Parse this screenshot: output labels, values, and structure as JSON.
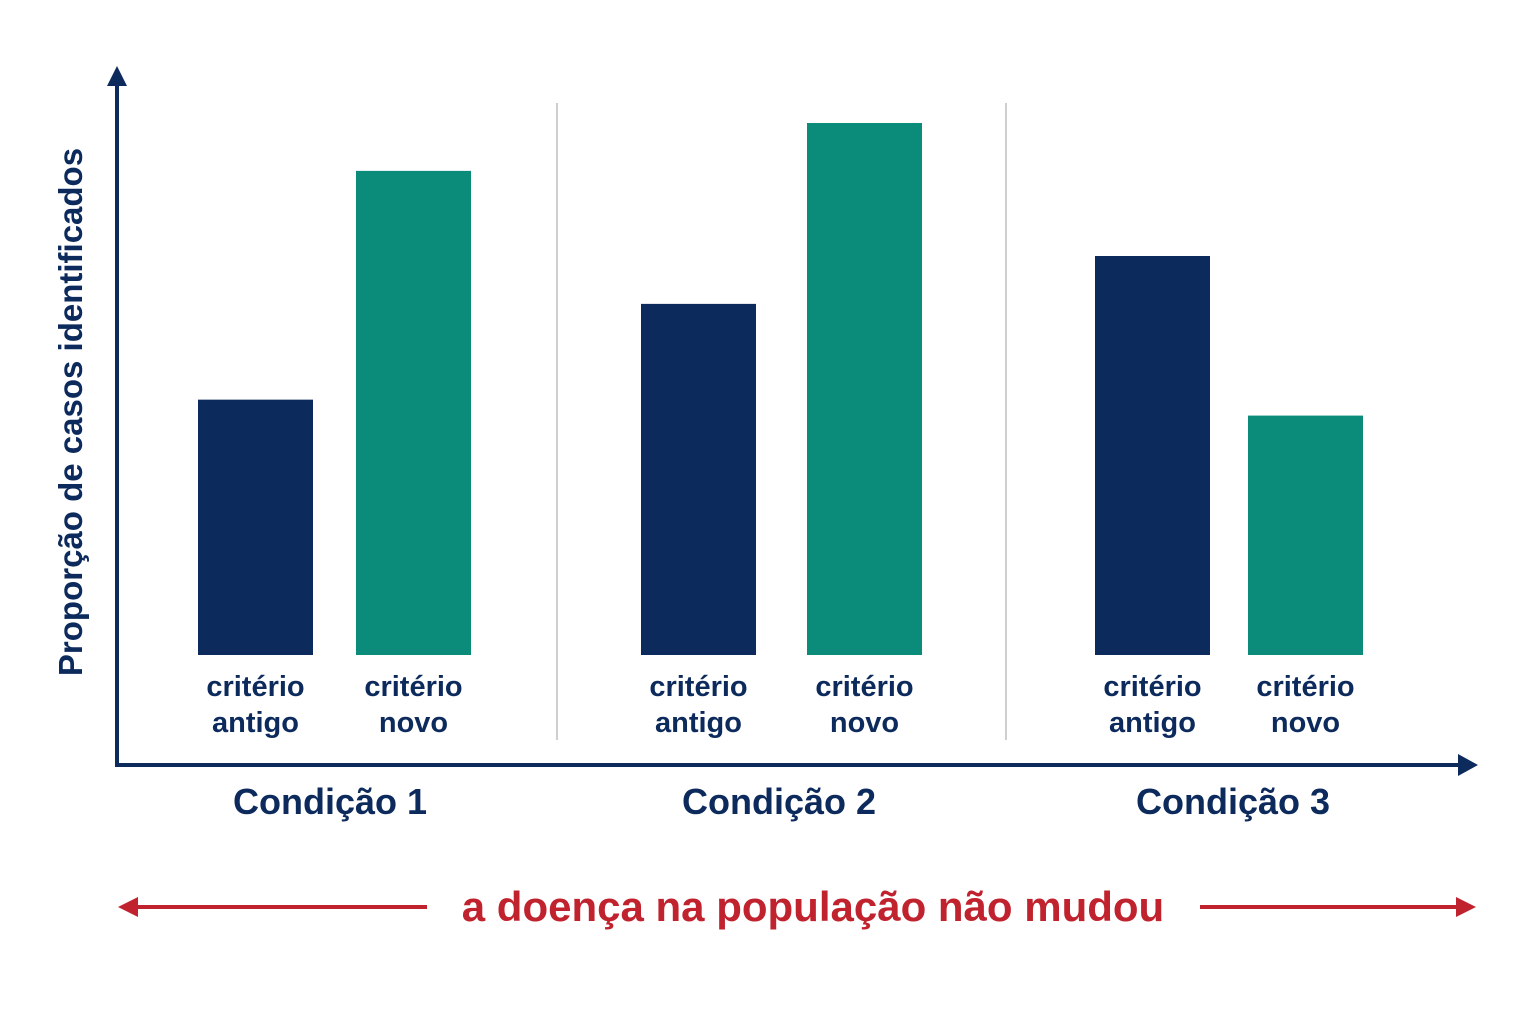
{
  "chart_data": {
    "type": "bar",
    "title": "",
    "ylabel": "Proporção de casos identificados",
    "xlabel": "",
    "ylim": [
      0,
      100
    ],
    "grid": false,
    "groups": [
      {
        "name": "Condição 1",
        "bars": [
          {
            "label_line1": "critério",
            "label_line2": "antigo",
            "value": 48,
            "color": "#0c2a5c"
          },
          {
            "label_line1": "critério",
            "label_line2": "novo",
            "value": 91,
            "color": "#0b8c7a"
          }
        ]
      },
      {
        "name": "Condição 2",
        "bars": [
          {
            "label_line1": "critério",
            "label_line2": "antigo",
            "value": 66,
            "color": "#0c2a5c"
          },
          {
            "label_line1": "critério",
            "label_line2": "novo",
            "value": 100,
            "color": "#0b8c7a"
          }
        ]
      },
      {
        "name": "Condição 3",
        "bars": [
          {
            "label_line1": "critério",
            "label_line2": "antigo",
            "value": 75,
            "color": "#0c2a5c"
          },
          {
            "label_line1": "critério",
            "label_line2": "novo",
            "value": 45,
            "color": "#0b8c7a"
          }
        ]
      }
    ],
    "annotation": "a doença na população não mudou"
  },
  "colors": {
    "axis": "#0c2a5c",
    "old_criterion": "#0c2a5c",
    "new_criterion": "#0b8c7a",
    "annotation": "#c0222e",
    "separator": "#cfcfcf"
  }
}
